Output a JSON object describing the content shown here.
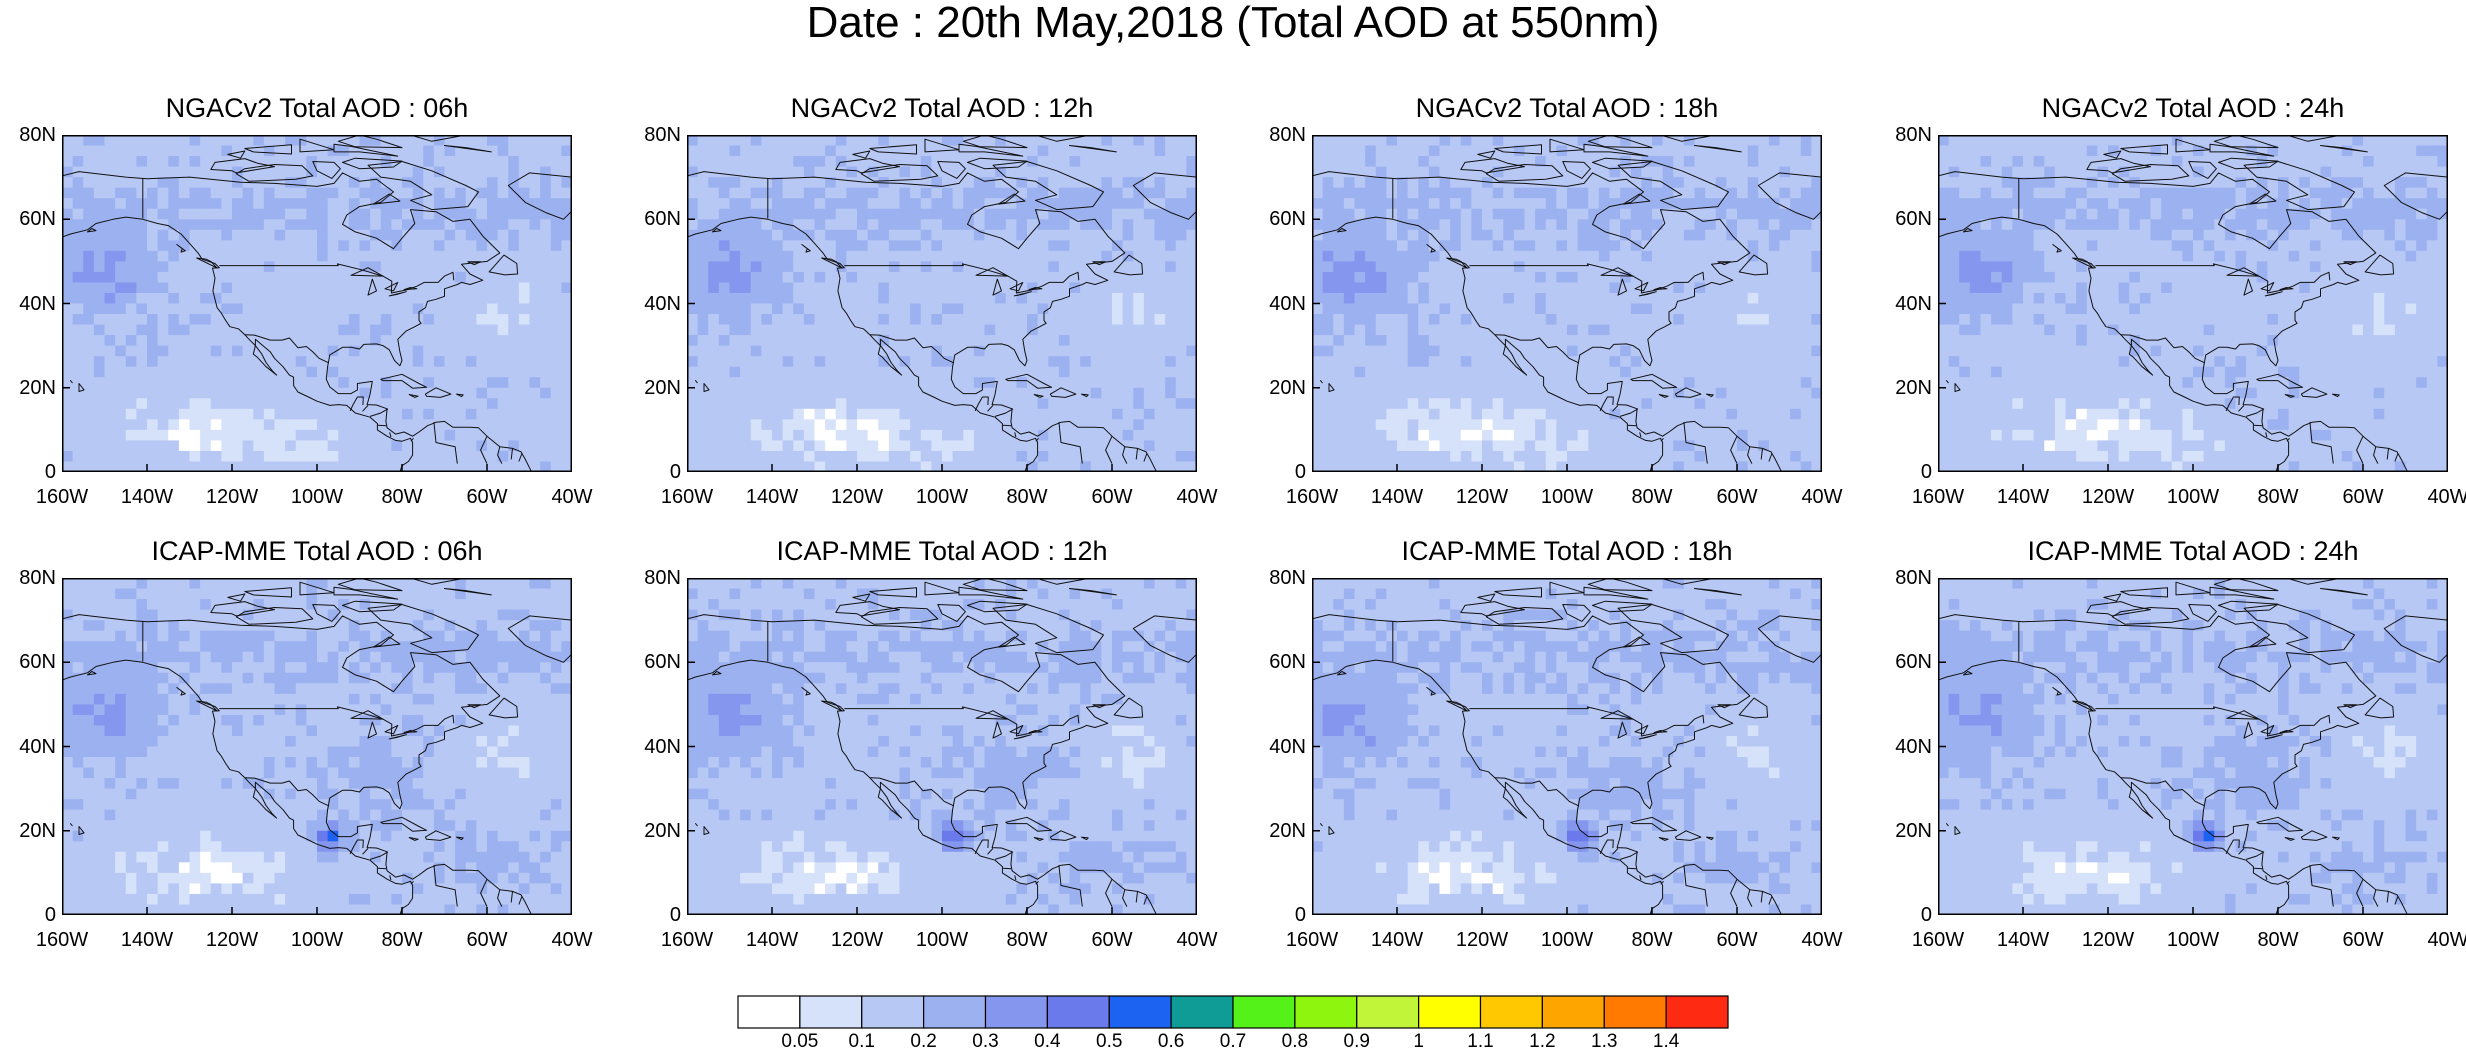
{
  "title": "Date : 20th May,2018 (Total AOD at 550nm)",
  "lat_labels": [
    "80N",
    "60N",
    "40N",
    "20N",
    "0"
  ],
  "lon_labels": [
    "160W",
    "140W",
    "120W",
    "100W",
    "80W",
    "60W",
    "40W"
  ],
  "panels": [
    {
      "title": "NGACv2 Total AOD : 06h",
      "model": "NGACv2"
    },
    {
      "title": "NGACv2 Total AOD : 12h",
      "model": "NGACv2"
    },
    {
      "title": "NGACv2 Total AOD : 18h",
      "model": "NGACv2"
    },
    {
      "title": "NGACv2 Total AOD : 24h",
      "model": "NGACv2"
    },
    {
      "title": "ICAP-MME Total AOD : 06h",
      "model": "ICAP-MME"
    },
    {
      "title": "ICAP-MME Total AOD : 12h",
      "model": "ICAP-MME"
    },
    {
      "title": "ICAP-MME Total AOD : 18h",
      "model": "ICAP-MME"
    },
    {
      "title": "ICAP-MME Total AOD : 24h",
      "model": "ICAP-MME"
    }
  ],
  "colorbar": {
    "colors": [
      "#ffffff",
      "#d6e1fa",
      "#b8c8f5",
      "#9cb1f0",
      "#8596ee",
      "#6a7aeb",
      "#1d63f1",
      "#0f9c96",
      "#55f21a",
      "#8ef50e",
      "#c1f53a",
      "#ffff00",
      "#ffc800",
      "#ffa500",
      "#ff7a00",
      "#ff2a12"
    ],
    "labels": [
      "0.05",
      "0.1",
      "0.2",
      "0.3",
      "0.4",
      "0.5",
      "0.6",
      "0.7",
      "0.8",
      "0.9",
      "1",
      "1.1",
      "1.2",
      "1.3",
      "1.4"
    ]
  }
}
